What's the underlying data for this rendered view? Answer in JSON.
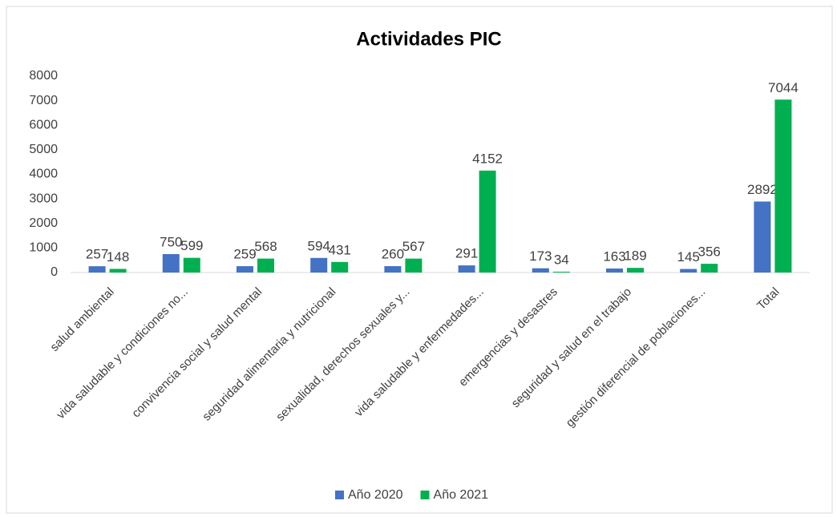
{
  "chart_data": {
    "type": "bar",
    "title": "Actividades PIC",
    "categories": [
      "salud ambiental",
      "vida saludable y condiciones no...",
      "convivencia social y salud mental",
      "seguridad alimentaria y nutricional",
      "sexualidad, derechos sexuales y...",
      "vida saludable y enfermedades...",
      "emergencias y desastres",
      "seguridad y salud en el trabajo",
      "gestión diferencial de poblaciones...",
      "Total"
    ],
    "series": [
      {
        "name": "Año 2020",
        "color": "#4472c4",
        "values": [
          257,
          750,
          259,
          594,
          260,
          291,
          173,
          163,
          145,
          2892
        ]
      },
      {
        "name": "Año 2021",
        "color": "#00b050",
        "values": [
          148,
          599,
          568,
          431,
          567,
          4152,
          34,
          189,
          356,
          7044
        ]
      }
    ],
    "ylim": [
      0,
      8000
    ],
    "yticks": [
      0,
      1000,
      2000,
      3000,
      4000,
      5000,
      6000,
      7000,
      8000
    ],
    "grid": false,
    "legend": "bottom"
  }
}
